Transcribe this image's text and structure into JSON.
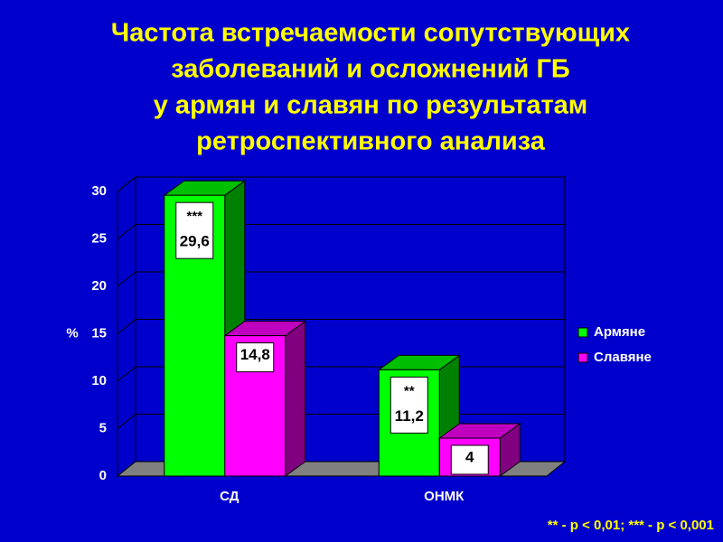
{
  "chart_data": {
    "type": "bar3d",
    "title": [
      "Частота встречаемости сопутствующих",
      "заболеваний и осложнений ГБ",
      "у армян и славян по результатам",
      "ретроспективного анализа"
    ],
    "y_label": "%",
    "categories": [
      "СД",
      "ОНМК"
    ],
    "series": [
      {
        "name": "Армяне",
        "color": "#00ff00",
        "values": [
          29.6,
          11.2
        ],
        "value_labels": [
          "29,6",
          "11,2"
        ],
        "annotations": [
          "***",
          "**"
        ]
      },
      {
        "name": "Славяне",
        "color": "#ff00ff",
        "values": [
          14.8,
          4
        ],
        "value_labels": [
          "14,8",
          "4"
        ]
      }
    ],
    "ylim": [
      0,
      30
    ],
    "yticks": [
      0,
      5,
      10,
      15,
      20,
      25,
      30
    ],
    "grid": true,
    "legend": "right",
    "footnote": "** - p < 0,01; *** - p < 0,001"
  }
}
